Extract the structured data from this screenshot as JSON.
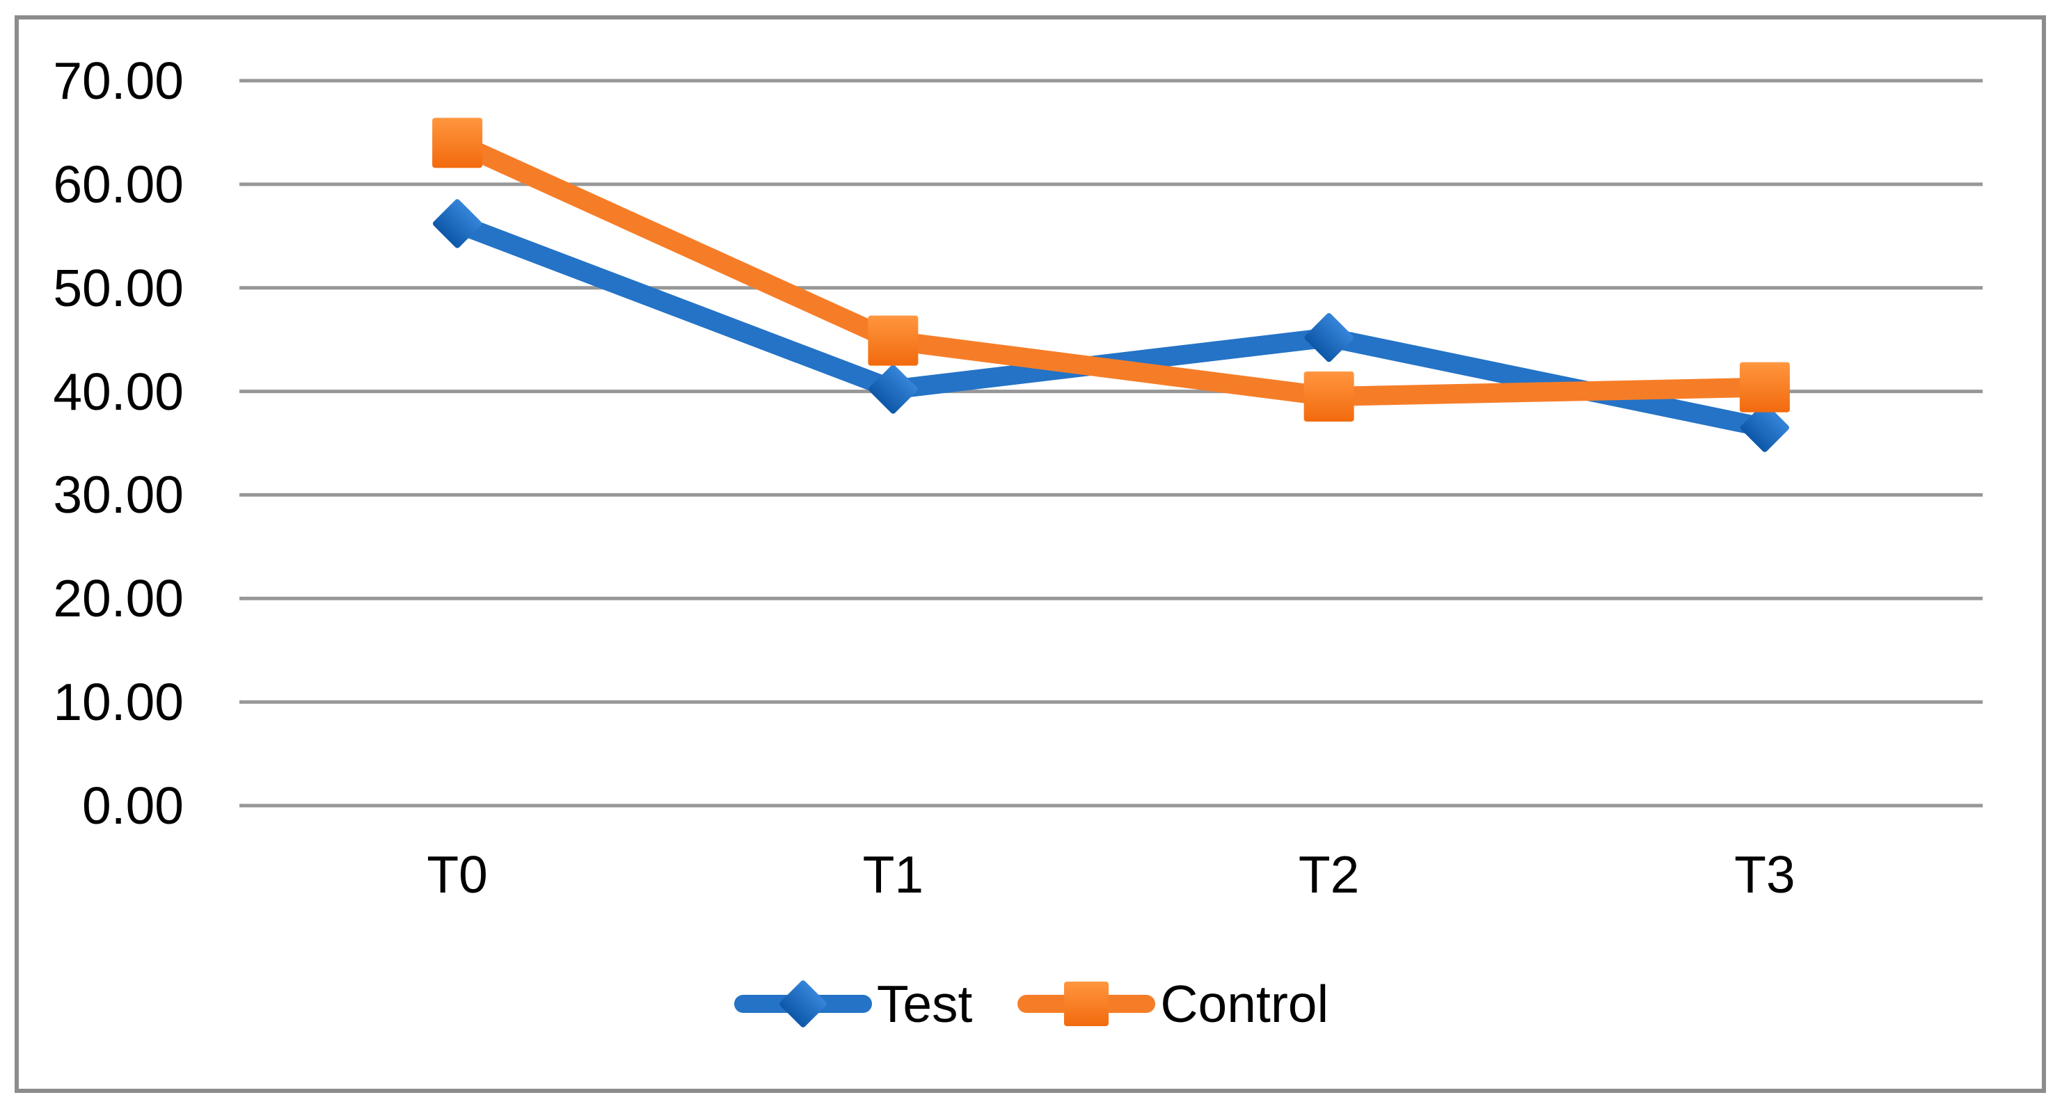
{
  "chart_data": {
    "type": "line",
    "categories": [
      "T0",
      "T1",
      "T2",
      "T3"
    ],
    "series": [
      {
        "name": "Test",
        "values": [
          56.2,
          40.2,
          45.2,
          36.5
        ],
        "color": "#2473C6",
        "marker": "diamond",
        "marker_gradient": [
          "#3585DA",
          "#0E57A8"
        ]
      },
      {
        "name": "Control",
        "values": [
          64.0,
          44.9,
          39.5,
          40.4
        ],
        "color": "#F67D28",
        "marker": "square",
        "marker_gradient": [
          "#FF963F",
          "#F26A0D"
        ]
      }
    ],
    "title": "",
    "xlabel": "",
    "ylabel": "",
    "ylim": [
      0,
      70
    ],
    "ytick_step": 10,
    "ytick_labels": [
      "70.00",
      "60.00",
      "50.00",
      "40.00",
      "30.00",
      "20.00",
      "10.00",
      "0.00"
    ],
    "grid": "horizontal-only",
    "gridline_color": "#979797",
    "frame_color": "#8C8C8C",
    "background": "#FFFFFF",
    "legend_position": "bottom-center"
  }
}
